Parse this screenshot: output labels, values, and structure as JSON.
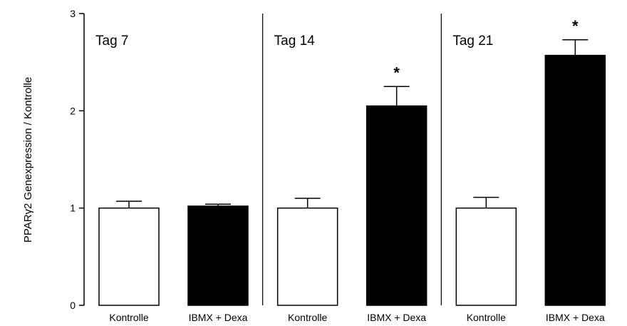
{
  "chart_data": {
    "type": "bar",
    "ylabel": "PPARγ2 Genexpression / Kontrolle",
    "ylim": [
      0,
      3
    ],
    "yticks": [
      0,
      1,
      2,
      3
    ],
    "grid": false,
    "panels": [
      {
        "label": "Tag 7",
        "bars": [
          {
            "category": "Kontrolle",
            "value": 1.0,
            "error": 0.07,
            "color": "#ffffff",
            "significant": ""
          },
          {
            "category": "IBMX + Dexa",
            "value": 1.02,
            "error": 0.02,
            "color": "#000000",
            "significant": ""
          }
        ]
      },
      {
        "label": "Tag 14",
        "bars": [
          {
            "category": "Kontrolle",
            "value": 1.0,
            "error": 0.1,
            "color": "#ffffff",
            "significant": ""
          },
          {
            "category": "IBMX + Dexa",
            "value": 2.05,
            "error": 0.2,
            "color": "#000000",
            "significant": "*"
          }
        ]
      },
      {
        "label": "Tag 21",
        "bars": [
          {
            "category": "Kontrolle",
            "value": 1.0,
            "error": 0.11,
            "color": "#ffffff",
            "significant": ""
          },
          {
            "category": "IBMX + Dexa",
            "value": 2.57,
            "error": 0.16,
            "color": "#000000",
            "significant": "*"
          }
        ]
      }
    ]
  }
}
